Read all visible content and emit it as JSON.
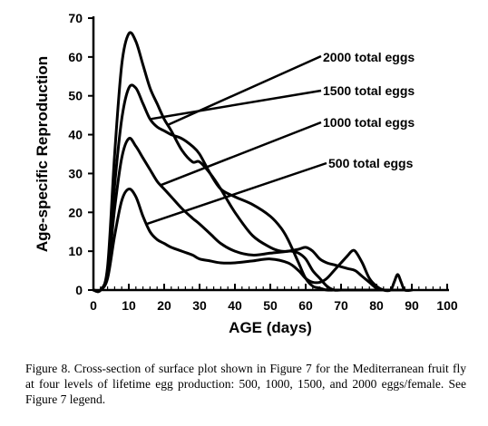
{
  "caption": "Figure 8. Cross-section of surface plot shown in Figure 7 for the Mediterranean fruit fly at four levels of lifetime egg production: 500, 1000, 1500, and 2000 eggs/female. See Figure 7 legend.",
  "chart_data": {
    "type": "line",
    "title": "",
    "xlabel": "AGE (days)",
    "ylabel": "Age-specific Reproduction",
    "xlim": [
      0,
      100
    ],
    "ylim": [
      0,
      70
    ],
    "xticks": [
      0,
      10,
      20,
      30,
      40,
      50,
      60,
      70,
      80,
      90,
      100
    ],
    "yticks": [
      0,
      10,
      20,
      30,
      40,
      50,
      60,
      70
    ],
    "grid": false,
    "legend": "direct labels with leader lines",
    "series": [
      {
        "name": "2000 total eggs",
        "x": [
          0,
          2,
          4,
          6,
          8,
          10,
          12,
          14,
          16,
          18,
          20,
          22,
          25,
          28,
          30,
          33,
          36,
          40,
          45,
          50,
          53,
          56,
          58,
          60,
          62,
          64,
          66,
          68,
          70,
          72,
          74,
          76,
          78,
          80,
          82,
          84
        ],
        "y": [
          0,
          0,
          6,
          35,
          58,
          66,
          64,
          58,
          52,
          48,
          44,
          41,
          36,
          33,
          33,
          30,
          26,
          20,
          14,
          11,
          10,
          10,
          9.5,
          8,
          5,
          3,
          1,
          0,
          0,
          0,
          0,
          0,
          0,
          0,
          0,
          0
        ]
      },
      {
        "name": "1500 total eggs",
        "x": [
          0,
          2,
          4,
          6,
          8,
          10,
          12,
          14,
          16,
          18,
          20,
          22,
          25,
          28,
          30,
          33,
          36,
          40,
          45,
          50,
          53,
          55,
          58,
          60,
          62,
          64,
          66,
          68,
          70,
          72,
          74,
          76,
          78,
          80,
          82,
          84
        ],
        "y": [
          0,
          0,
          5,
          27,
          44,
          52,
          52,
          48,
          44,
          42,
          41,
          40,
          39,
          37,
          35,
          30,
          26,
          24,
          22,
          19,
          16,
          13,
          7,
          3,
          1,
          0.5,
          0,
          0,
          0,
          0,
          0,
          0,
          0,
          0,
          0,
          0
        ]
      },
      {
        "name": "1000 total eggs",
        "x": [
          0,
          2,
          4,
          6,
          8,
          10,
          12,
          14,
          16,
          18,
          20,
          22,
          25,
          28,
          30,
          33,
          36,
          40,
          45,
          50,
          55,
          58,
          60,
          62,
          64,
          66,
          68,
          70,
          72,
          74,
          76,
          78,
          80,
          82,
          84,
          86,
          88
        ],
        "y": [
          0,
          0,
          4,
          21,
          34,
          39,
          37,
          34,
          31,
          28,
          26,
          24,
          21,
          18.5,
          17,
          14.5,
          12,
          10,
          9,
          9.5,
          10,
          10.5,
          11,
          10,
          8,
          7,
          6.5,
          6,
          5.5,
          5,
          3.5,
          2,
          0.5,
          0,
          0,
          0,
          0
        ]
      },
      {
        "name": "500 total eggs",
        "x": [
          0,
          2,
          4,
          6,
          8,
          10,
          12,
          14,
          16,
          18,
          20,
          22,
          25,
          28,
          30,
          33,
          36,
          40,
          45,
          50,
          55,
          58,
          60,
          62,
          64,
          66,
          68,
          70,
          72,
          73,
          74,
          76,
          78,
          80,
          82,
          84,
          85,
          86,
          87,
          88,
          90
        ],
        "y": [
          0,
          0,
          3,
          14,
          23,
          26,
          24,
          19,
          15,
          13,
          12,
          11,
          10,
          9,
          8,
          7.5,
          7,
          7,
          7.5,
          8,
          7,
          5,
          3,
          2,
          2,
          3,
          5,
          7,
          9,
          10,
          10,
          7,
          3,
          1,
          0,
          0,
          2,
          4,
          2,
          0,
          0
        ]
      }
    ]
  }
}
